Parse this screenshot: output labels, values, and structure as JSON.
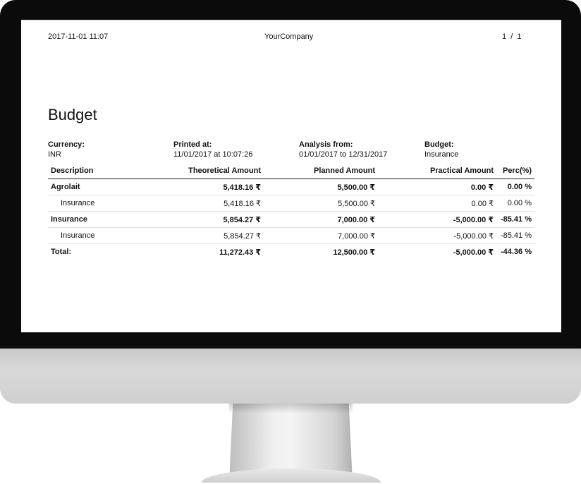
{
  "report": {
    "header": {
      "datetime": "2017-11-01 11:07",
      "company": "YourCompany",
      "pages": "1  /  1"
    },
    "title": "Budget",
    "info": {
      "currency_label": "Currency:",
      "currency_value": "INR",
      "printed_label": "Printed at:",
      "printed_value": "11/01/2017 at 10:07:26",
      "analysis_label": "Analysis from:",
      "analysis_value": "01/01/2017 to 12/31/2017",
      "budget_label": "Budget:",
      "budget_value": "Insurance"
    },
    "columns": [
      "Description",
      "Theoretical Amount",
      "Planned Amount",
      "Practical Amount",
      "Perc(%)"
    ],
    "rows": [
      {
        "type": "group",
        "desc": "Agrolait",
        "theoretical": "5,418.16 ₹",
        "planned": "5,500.00 ₹",
        "practical": "0.00 ₹",
        "perc": "0.00 %"
      },
      {
        "type": "sub",
        "desc": "Insurance",
        "theoretical": "5,418.16 ₹",
        "planned": "5,500.00 ₹",
        "practical": "0.00 ₹",
        "perc": "0.00 %"
      },
      {
        "type": "group",
        "desc": "Insurance",
        "theoretical": "5,854.27 ₹",
        "planned": "7,000.00 ₹",
        "practical": "-5,000.00 ₹",
        "perc": "-85.41 %"
      },
      {
        "type": "sub",
        "desc": "Insurance",
        "theoretical": "5,854.27 ₹",
        "planned": "7,000.00 ₹",
        "practical": "-5,000.00 ₹",
        "perc": "-85.41 %"
      },
      {
        "type": "total",
        "desc": "Total:",
        "theoretical": "11,272.43 ₹",
        "planned": "12,500.00 ₹",
        "practical": "-5,000.00 ₹",
        "perc": "-44.36 %"
      }
    ]
  }
}
